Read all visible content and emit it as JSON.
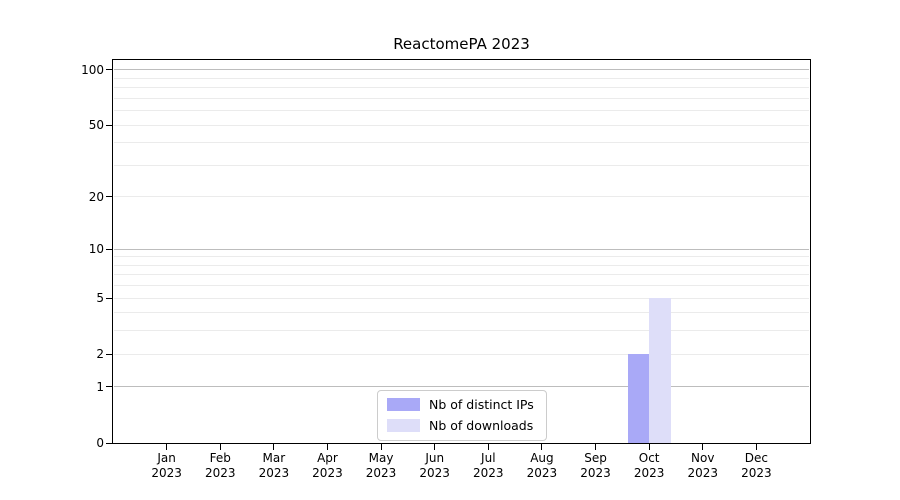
{
  "chart_data": {
    "type": "bar",
    "title": "ReactomePA 2023",
    "categories": [
      "Jan",
      "Feb",
      "Mar",
      "Apr",
      "May",
      "Jun",
      "Jul",
      "Aug",
      "Sep",
      "Oct",
      "Nov",
      "Dec"
    ],
    "category_year": "2023",
    "series": [
      {
        "name": "Nb of distinct IPs",
        "color": "#a9a9f7",
        "values": [
          0,
          0,
          0,
          0,
          0,
          0,
          0,
          0,
          0,
          2,
          0,
          0
        ]
      },
      {
        "name": "Nb of downloads",
        "color": "#dedef9",
        "values": [
          0,
          0,
          0,
          0,
          0,
          0,
          0,
          0,
          0,
          5,
          0,
          0
        ]
      }
    ],
    "yscale": "log1p",
    "ylim": [
      0,
      113.2
    ],
    "ytick_labels": [
      0,
      1,
      2,
      5,
      10,
      20,
      50,
      100
    ],
    "major_gridlines": [
      1,
      10,
      100
    ],
    "minor_gridlines": [
      2,
      3,
      4,
      5,
      6,
      7,
      8,
      9,
      20,
      30,
      40,
      50,
      60,
      70,
      80,
      90
    ],
    "grid": true,
    "legend_position": "lower center",
    "colors": {
      "spine": "#000000",
      "major_grid": "#bdbdbd",
      "minor_grid": "#ebebeb",
      "background": "#ffffff"
    }
  }
}
